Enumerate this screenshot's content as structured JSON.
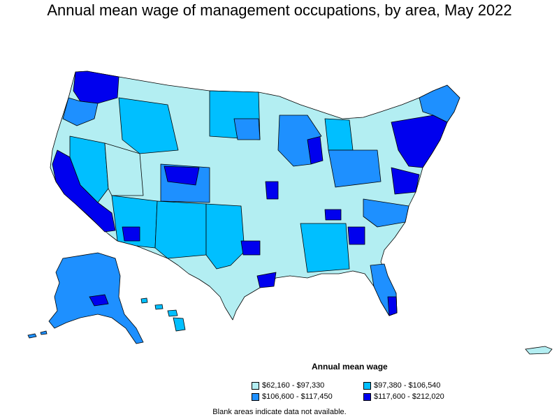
{
  "title": "Annual mean wage of management occupations, by area, May 2022",
  "legend": {
    "title": "Annual mean wage",
    "items": [
      {
        "label": "$62,160 - $97,330",
        "color": "#b3eef2"
      },
      {
        "label": "$97,380 - $106,540",
        "color": "#00bfff"
      },
      {
        "label": "$106,600 - $117,450",
        "color": "#1e90ff"
      },
      {
        "label": "$117,600 - $212,020",
        "color": "#0000ee"
      }
    ]
  },
  "note": "Blank areas indicate data not available."
}
